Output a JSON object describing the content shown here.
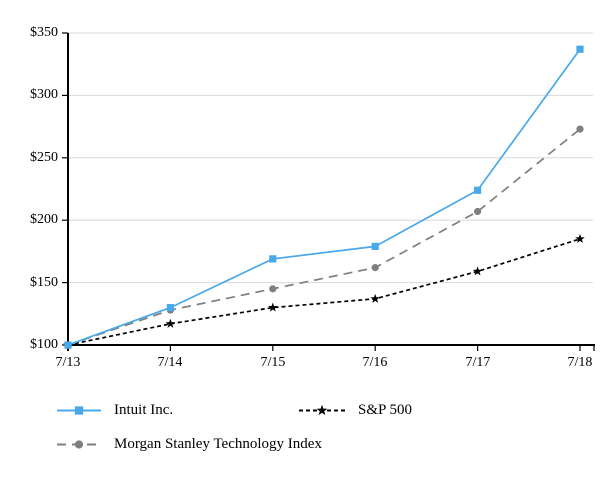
{
  "chart_data": {
    "type": "line",
    "title": "",
    "xlabel": "",
    "ylabel": "",
    "categories": [
      "7/13",
      "7/14",
      "7/15",
      "7/16",
      "7/17",
      "7/18"
    ],
    "series": [
      {
        "name": "Intuit Inc.",
        "values": [
          100,
          130,
          169,
          179,
          224,
          337
        ],
        "color": "#48a8e8",
        "dash": "",
        "marker": "square"
      },
      {
        "name": "S&P 500",
        "values": [
          100,
          117,
          130,
          137,
          159,
          185
        ],
        "color": "#000000",
        "dash": "4 3",
        "marker": "star"
      },
      {
        "name": "Morgan Stanley Technology Index",
        "values": [
          100,
          128,
          145,
          162,
          207,
          273
        ],
        "color": "#7f7f7f",
        "dash": "9 6",
        "marker": "circle"
      }
    ],
    "ylim": [
      100,
      350
    ],
    "ytick_step": 50,
    "ytick_labels_top_down": [
      "$350",
      "$300",
      "$250",
      "$200",
      "$150",
      "$100"
    ],
    "grid": true,
    "grid_color": "#d9d9d9",
    "axis_color": "#000000",
    "background": "#ffffff",
    "legend_position": "bottom"
  }
}
